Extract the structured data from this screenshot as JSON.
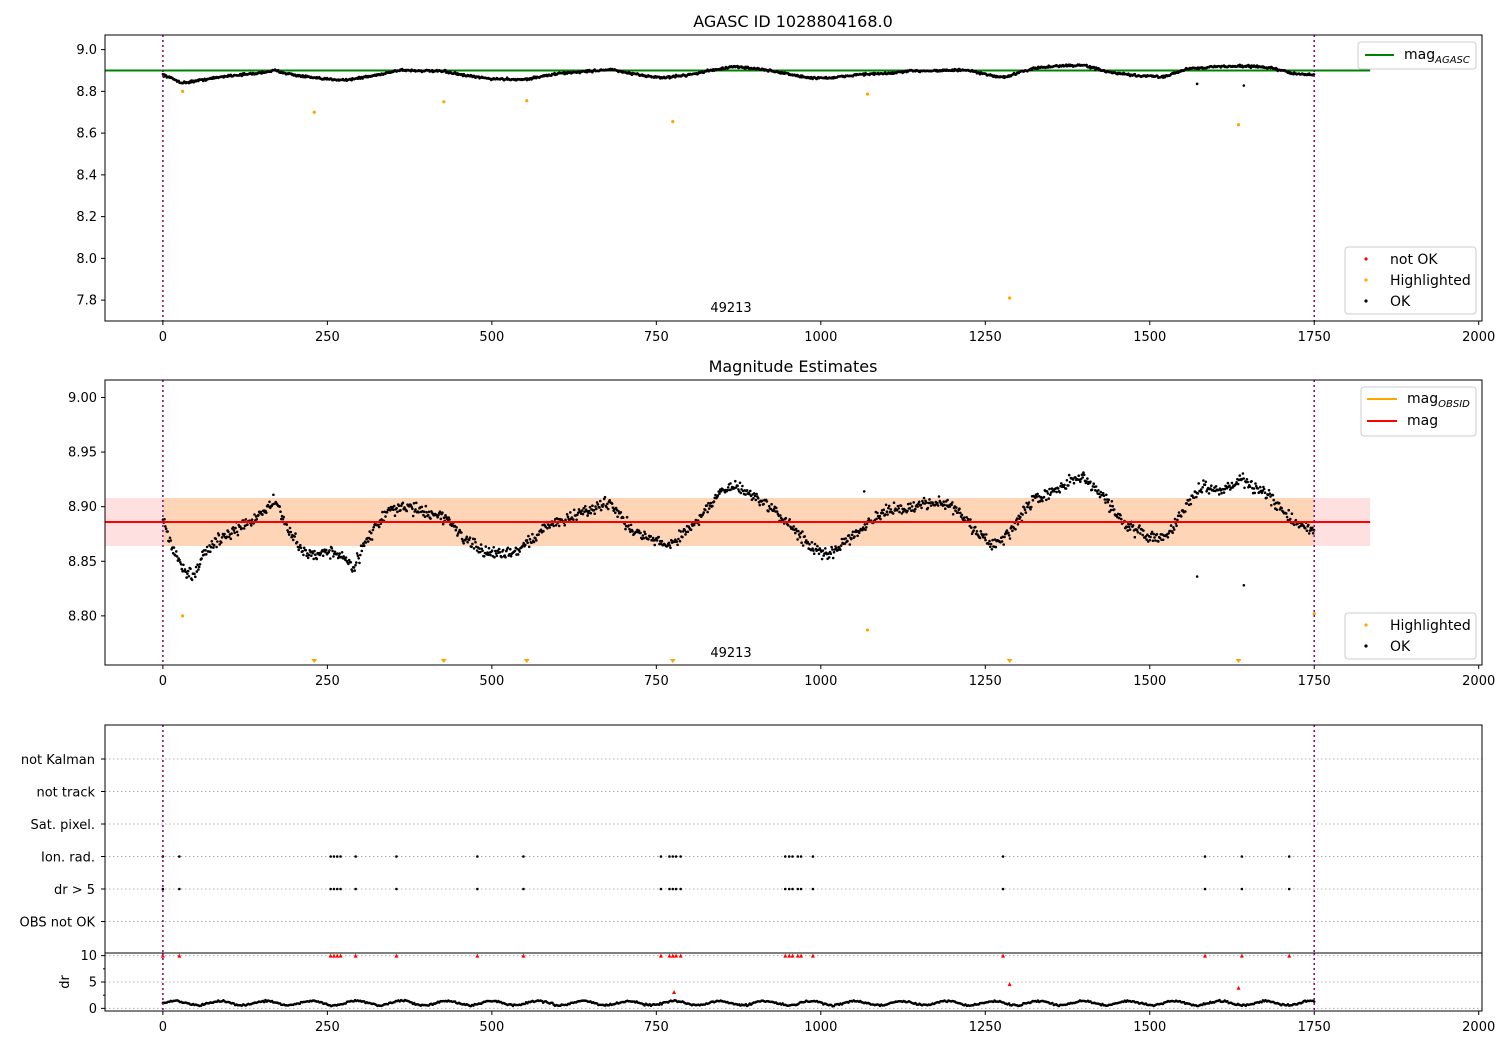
{
  "chart_data": [
    {
      "type": "scatter",
      "title": "AGASC ID 1028804168.0",
      "xlabel": "",
      "ylabel": "",
      "xlim": [
        -88,
        2005
      ],
      "ylim": [
        7.7,
        9.07
      ],
      "x_ticks": [
        "0",
        "250",
        "500",
        "750",
        "1000",
        "1250",
        "1500",
        "1750",
        "2000"
      ],
      "x_tick_values": [
        0,
        250,
        500,
        750,
        1000,
        1250,
        1500,
        1750,
        2000
      ],
      "y_ticks": [
        "7.8",
        "8.0",
        "8.2",
        "8.4",
        "8.6",
        "8.8",
        "9.0"
      ],
      "y_tick_values": [
        7.8,
        8.0,
        8.2,
        8.4,
        8.6,
        8.8,
        9.0
      ],
      "obs_boundaries": [
        0,
        1750
      ],
      "obs_label": "49213",
      "mag_agasc": 8.9,
      "series": [
        {
          "name": "OK",
          "color": "#000000",
          "trend": {
            "x": [
              0,
              30,
              60,
              100,
              140,
              170,
              200,
              240,
              280,
              320,
              360,
              400,
              430,
              460,
              500,
              550,
              600,
              640,
              680,
              720,
              760,
              800,
              840,
              870,
              900,
              940,
              980,
              1020,
              1060,
              1100,
              1140,
              1180,
              1220,
              1260,
              1280,
              1320,
              1360,
              1400,
              1440,
              1480,
              1520,
              1560,
              1600,
              1640,
              1680,
              1720,
              1750
            ],
            "y": [
              8.88,
              8.84,
              8.855,
              8.875,
              8.885,
              8.9,
              8.878,
              8.86,
              8.855,
              8.875,
              8.902,
              8.898,
              8.895,
              8.875,
              8.86,
              8.857,
              8.885,
              8.895,
              8.905,
              8.88,
              8.865,
              8.88,
              8.905,
              8.918,
              8.91,
              8.89,
              8.865,
              8.865,
              8.882,
              8.885,
              8.898,
              8.9,
              8.902,
              8.875,
              8.868,
              8.908,
              8.922,
              8.925,
              8.89,
              8.875,
              8.87,
              8.91,
              8.918,
              8.922,
              8.915,
              8.885,
              8.878
            ]
          },
          "outliers": [
            {
              "x": 1572,
              "y": 8.836
            },
            {
              "x": 1643,
              "y": 8.828
            }
          ]
        },
        {
          "name": "Highlighted",
          "color": "#ffa500",
          "points": [
            {
              "x": 30,
              "y": 8.8
            },
            {
              "x": 230,
              "y": 8.7
            },
            {
              "x": 427,
              "y": 8.75
            },
            {
              "x": 553,
              "y": 8.755
            },
            {
              "x": 775,
              "y": 8.655
            },
            {
              "x": 1071,
              "y": 8.787
            },
            {
              "x": 1287,
              "y": 7.81
            },
            {
              "x": 1635,
              "y": 8.64
            }
          ]
        },
        {
          "name": "not OK",
          "color": "#ff0000",
          "points": []
        }
      ],
      "legend_top": [
        {
          "label": "mag",
          "subscript": "AGASC",
          "color": "#008000"
        }
      ],
      "legend_bottom": [
        {
          "label": "not OK",
          "color": "#ff0000"
        },
        {
          "label": "Highlighted",
          "color": "#ffa500"
        },
        {
          "label": "OK",
          "color": "#000000"
        }
      ]
    },
    {
      "type": "scatter",
      "title": "Magnitude Estimates",
      "xlabel": "",
      "ylabel": "",
      "xlim": [
        -88,
        2005
      ],
      "ylim": [
        8.755,
        9.016
      ],
      "x_ticks": [
        "0",
        "250",
        "500",
        "750",
        "1000",
        "1250",
        "1500",
        "1750",
        "2000"
      ],
      "x_tick_values": [
        0,
        250,
        500,
        750,
        1000,
        1250,
        1500,
        1750,
        2000
      ],
      "y_ticks": [
        "8.80",
        "8.85",
        "8.90",
        "8.95",
        "9.00"
      ],
      "y_tick_values": [
        8.8,
        8.85,
        8.9,
        8.95,
        9.0
      ],
      "obs_boundaries": [
        0,
        1750
      ],
      "obs_label": "49213",
      "mag": 8.886,
      "mag_obsid": 8.886,
      "band": [
        8.864,
        8.908
      ],
      "band_x": [
        0,
        1835
      ],
      "series": [
        {
          "name": "OK",
          "color": "#000000",
          "trend": {
            "x": [
              0,
              15,
              30,
              45,
              60,
              80,
              100,
              130,
              160,
              170,
              190,
              210,
              230,
              250,
              270,
              290,
              310,
              340,
              370,
              400,
              430,
              460,
              480,
              510,
              540,
              560,
              590,
              620,
              660,
              680,
              710,
              740,
              770,
              800,
              830,
              850,
              870,
              900,
              930,
              960,
              990,
              1010,
              1040,
              1070,
              1100,
              1140,
              1180,
              1200,
              1240,
              1260,
              1280,
              1320,
              1360,
              1380,
              1400,
              1430,
              1460,
              1490,
              1520,
              1550,
              1580,
              1610,
              1640,
              1680,
              1720,
              1750
            ],
            "y": [
              8.89,
              8.86,
              8.845,
              8.835,
              8.855,
              8.868,
              8.875,
              8.885,
              8.9,
              8.905,
              8.88,
              8.86,
              8.855,
              8.86,
              8.855,
              8.845,
              8.87,
              8.895,
              8.9,
              8.895,
              8.89,
              8.87,
              8.86,
              8.857,
              8.86,
              8.87,
              8.885,
              8.89,
              8.9,
              8.905,
              8.88,
              8.87,
              8.865,
              8.88,
              8.9,
              8.915,
              8.918,
              8.91,
              8.895,
              8.88,
              8.86,
              8.855,
              8.87,
              8.885,
              8.895,
              8.9,
              8.905,
              8.9,
              8.875,
              8.865,
              8.87,
              8.905,
              8.915,
              8.925,
              8.925,
              8.91,
              8.885,
              8.875,
              8.87,
              8.895,
              8.92,
              8.915,
              8.925,
              8.91,
              8.885,
              8.878
            ]
          },
          "outliers": [
            {
              "x": 1572,
              "y": 8.836
            },
            {
              "x": 1643,
              "y": 8.828
            },
            {
              "x": 1066,
              "y": 8.914
            }
          ]
        },
        {
          "name": "Highlighted",
          "color": "#ffa500",
          "points": [
            {
              "x": 30,
              "y": 8.8
            },
            {
              "x": 1071,
              "y": 8.787
            },
            {
              "x": 1750,
              "y": 8.802
            }
          ]
        }
      ],
      "offscale_markers": [
        230,
        427,
        553,
        775,
        1287,
        1635
      ],
      "legend_top": [
        {
          "label": "mag",
          "subscript": "OBSID",
          "color": "#ffa500"
        },
        {
          "label": "mag",
          "subscript": "",
          "color": "#ff0000"
        }
      ],
      "legend_bottom": [
        {
          "label": "Highlighted",
          "color": "#ffa500"
        },
        {
          "label": "OK",
          "color": "#000000"
        }
      ]
    },
    {
      "type": "scatter",
      "title": "",
      "xlabel": "",
      "ylabel": "",
      "xlim": [
        -88,
        2005
      ],
      "categories": [
        "not Kalman",
        "not track",
        "Sat. pixel.",
        "Ion. rad.",
        "dr > 5",
        "OBS not OK"
      ],
      "obs_boundaries": [
        0,
        1750
      ],
      "flags": {
        "Ion. rad.": [
          0,
          25,
          255,
          260,
          265,
          270,
          293,
          355,
          478,
          548,
          757,
          770,
          775,
          780,
          787,
          946,
          952,
          957,
          965,
          970,
          988,
          1277,
          1584,
          1640,
          1712
        ],
        "dr > 5": [
          0,
          25,
          255,
          260,
          265,
          270,
          293,
          355,
          478,
          548,
          757,
          770,
          775,
          780,
          787,
          946,
          952,
          957,
          965,
          970,
          988,
          1277,
          1584,
          1640,
          1712
        ]
      }
    },
    {
      "type": "scatter",
      "title": "",
      "xlabel": "",
      "ylabel": "dr",
      "xlim": [
        -88,
        2005
      ],
      "ylim": [
        -0.5,
        10.5
      ],
      "x_ticks": [
        "0",
        "250",
        "500",
        "750",
        "1000",
        "1250",
        "1500",
        "1750",
        "2000"
      ],
      "x_tick_values": [
        0,
        250,
        500,
        750,
        1000,
        1250,
        1500,
        1750,
        2000
      ],
      "y_ticks": [
        "0",
        "5",
        "10"
      ],
      "y_tick_values": [
        0,
        5,
        10
      ],
      "obs_boundaries": [
        0,
        1750
      ],
      "series": [
        {
          "name": "dr",
          "color": "#000000",
          "baseline": 1.0
        },
        {
          "name": "dr > 5",
          "color": "#ff0000",
          "points": [
            {
              "x": 0,
              "y": 10
            },
            {
              "x": 25,
              "y": 10
            },
            {
              "x": 255,
              "y": 10
            },
            {
              "x": 260,
              "y": 10
            },
            {
              "x": 265,
              "y": 10
            },
            {
              "x": 270,
              "y": 10
            },
            {
              "x": 293,
              "y": 10
            },
            {
              "x": 355,
              "y": 10
            },
            {
              "x": 478,
              "y": 10
            },
            {
              "x": 548,
              "y": 10
            },
            {
              "x": 757,
              "y": 10
            },
            {
              "x": 770,
              "y": 10
            },
            {
              "x": 775,
              "y": 10
            },
            {
              "x": 780,
              "y": 10
            },
            {
              "x": 787,
              "y": 10
            },
            {
              "x": 946,
              "y": 10
            },
            {
              "x": 952,
              "y": 10
            },
            {
              "x": 957,
              "y": 10
            },
            {
              "x": 965,
              "y": 10
            },
            {
              "x": 970,
              "y": 10
            },
            {
              "x": 988,
              "y": 10
            },
            {
              "x": 1277,
              "y": 10
            },
            {
              "x": 1584,
              "y": 10
            },
            {
              "x": 1640,
              "y": 10
            },
            {
              "x": 1712,
              "y": 10
            },
            {
              "x": 777,
              "y": 3.1
            },
            {
              "x": 1287,
              "y": 4.6
            },
            {
              "x": 1635,
              "y": 3.9
            }
          ]
        }
      ]
    }
  ]
}
